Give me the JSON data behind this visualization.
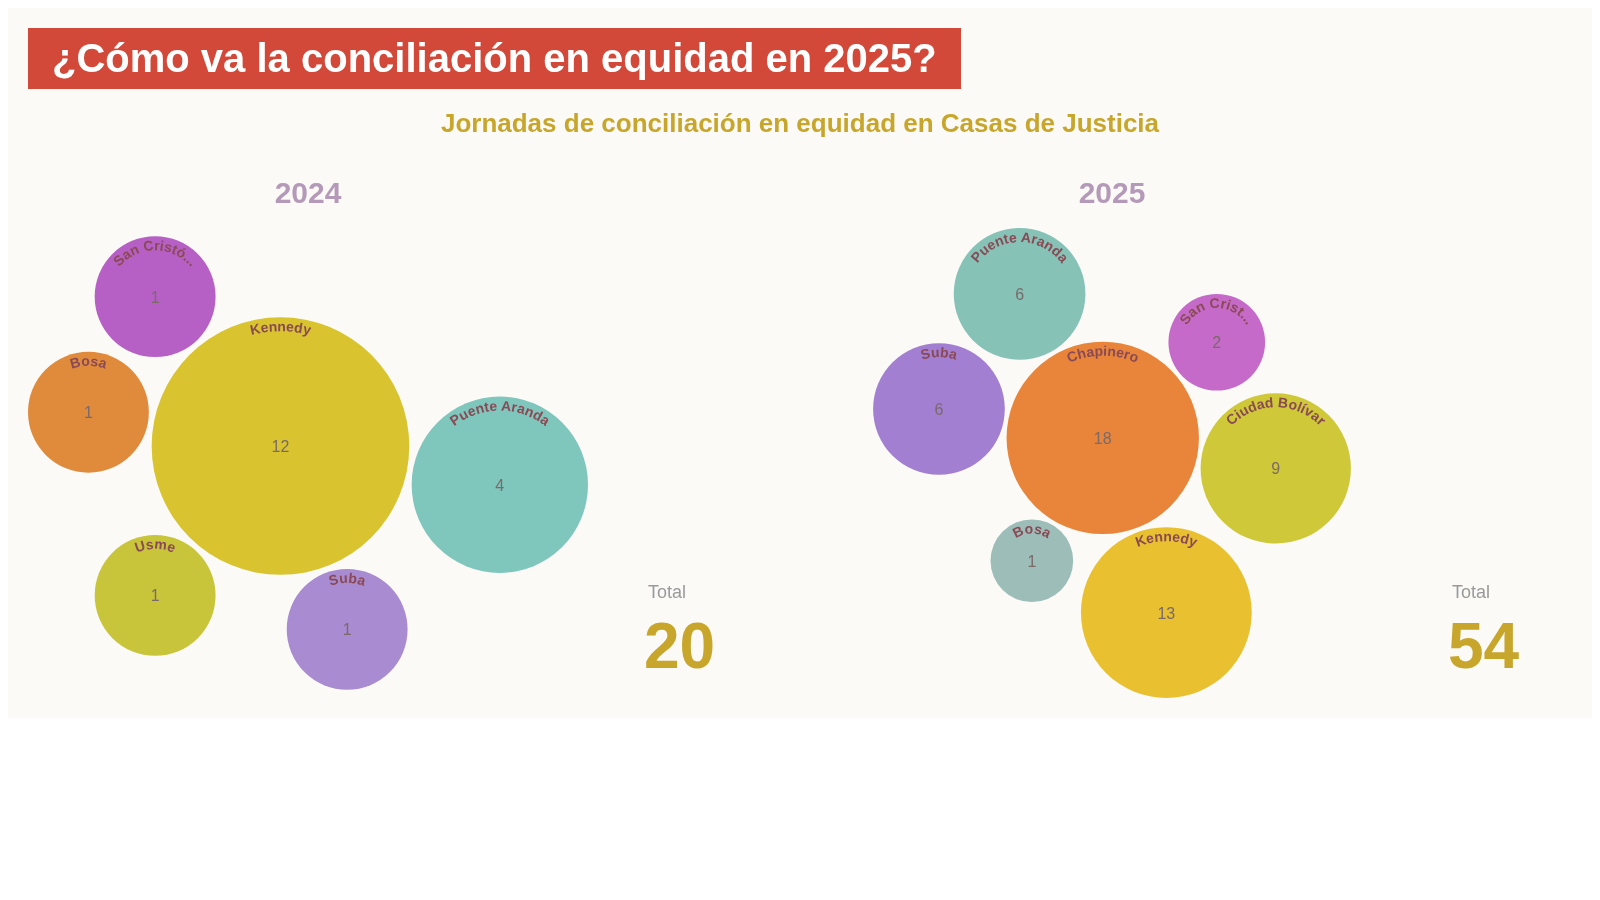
{
  "chart_data": [
    {
      "type": "other",
      "title": "¿Cómo va la conciliación en equidad en 2025?",
      "subtitle": "Jornadas de conciliación en equidad en Casas de Justicia"
    },
    {
      "type": "other",
      "title": "2024",
      "categories": [
        "Suba",
        "Usme",
        "Kennedy",
        "Puente Aranda",
        "Bosa",
        "San Cristó..."
      ],
      "values": [
        1,
        1,
        12,
        4,
        1,
        1
      ],
      "colors": [
        "#a88bd0",
        "#c9c53a",
        "#d9c430",
        "#7fc7bd",
        "#e08a3c",
        "#b65fc4"
      ],
      "data_labels": true,
      "annotations": [
        "Total",
        "20"
      ]
    },
    {
      "type": "other",
      "title": "2025",
      "categories": [
        "Suba",
        "Puente Aranda",
        "Bosa",
        "Chapinero",
        "Kennedy",
        "San Crist...",
        "Ciudad Bolívar"
      ],
      "values": [
        6,
        6,
        1,
        18,
        13,
        2,
        9
      ],
      "colors": [
        "#a27fd0",
        "#86c2b6",
        "#9dbdb8",
        "#e8853a",
        "#e8c030",
        "#c56ac8",
        "#cfc93a"
      ],
      "data_labels": true,
      "annotations": [
        "Total",
        "54"
      ]
    }
  ]
}
